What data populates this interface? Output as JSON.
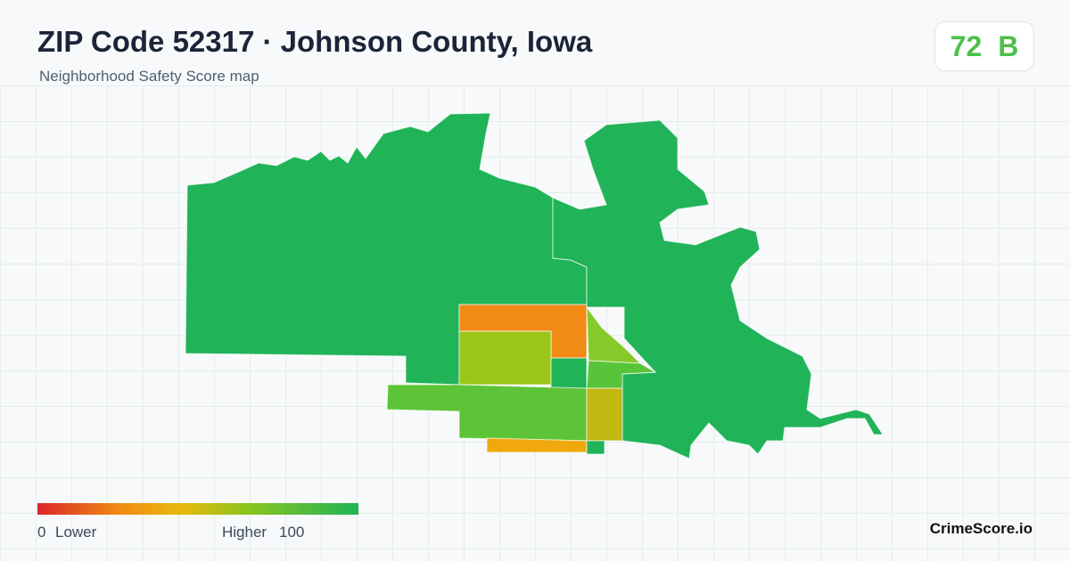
{
  "header": {
    "title": "ZIP Code 52317 · Johnson County, Iowa",
    "subtitle": "Neighborhood Safety Score map",
    "score": "72",
    "grade": "B"
  },
  "legend": {
    "min": "0",
    "min_label": "Lower",
    "max_label": "Higher",
    "max": "100"
  },
  "brand": "CrimeScore.io"
}
